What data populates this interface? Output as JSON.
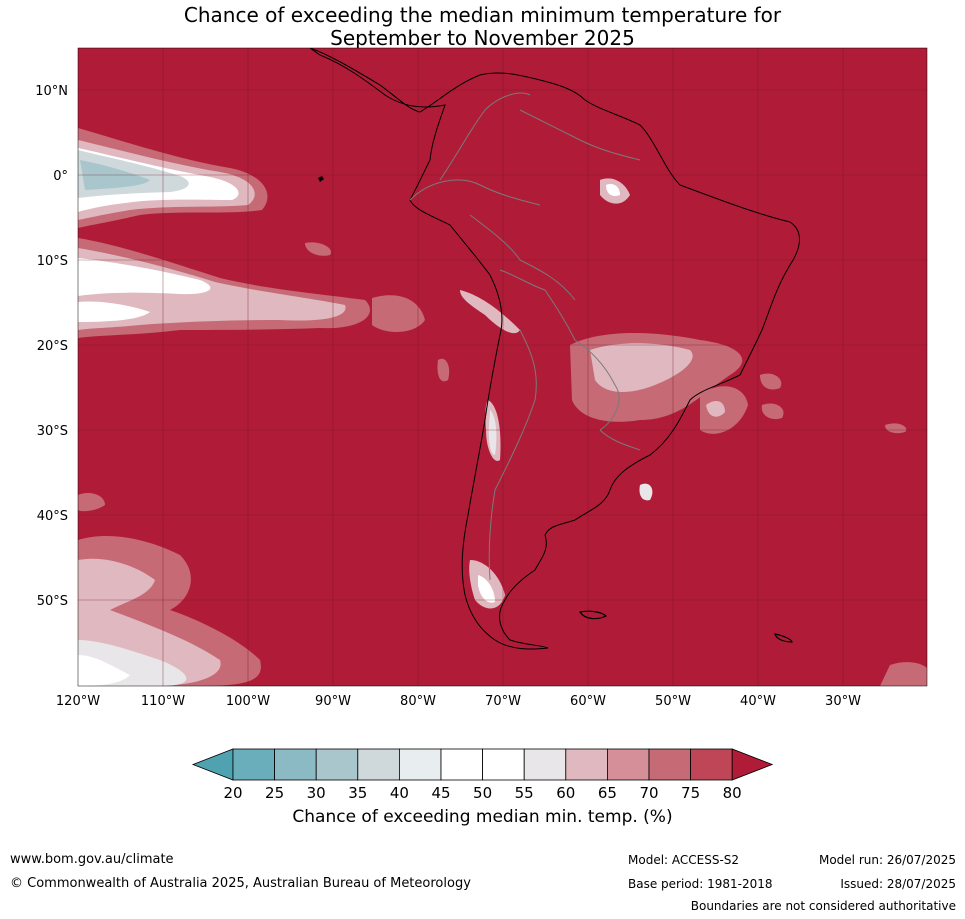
{
  "title_line1": "Chance of exceeding the median minimum temperature for",
  "title_line2": "September to November 2025",
  "map": {
    "lat_labels": [
      "10°N",
      "0°",
      "10°S",
      "20°S",
      "30°S",
      "40°S",
      "50°S"
    ],
    "lon_labels": [
      "120°W",
      "110°W",
      "100°W",
      "90°W",
      "80°W",
      "70°W",
      "60°W",
      "50°W",
      "40°W",
      "30°W"
    ],
    "dominant_color": "#b01c38"
  },
  "colorbar": {
    "label": "Chance of exceeding median min. temp. (%)",
    "ticks": [
      "20",
      "25",
      "30",
      "35",
      "40",
      "45",
      "50",
      "55",
      "60",
      "65",
      "70",
      "75",
      "80"
    ],
    "colors": [
      "#4fa3b0",
      "#6aaebb",
      "#8bb9c4",
      "#a9c6cc",
      "#cfd9dc",
      "#e8eef0",
      "#ffffff",
      "#ffffff",
      "#e8e6e8",
      "#e0b8bf",
      "#d48f98",
      "#c66a76",
      "#be4656",
      "#b01c38"
    ]
  },
  "footer": {
    "website": "www.bom.gov.au/climate",
    "copyright": "© Commonwealth of Australia 2025, Australian Bureau of Meteorology",
    "model": "Model: ACCESS-S2",
    "base_period": "Base period: 1981-2018",
    "model_run": "Model run: 26/07/2025",
    "issued": "Issued: 28/07/2025",
    "disclaimer": "Boundaries are not considered authoritative"
  }
}
